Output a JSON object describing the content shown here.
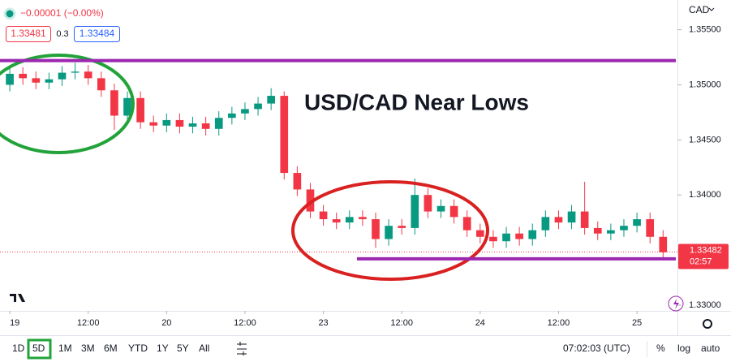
{
  "chart_data": {
    "type": "candlestick",
    "title": "USD/CAD Near Lows",
    "change": "−0.00001 (−0.00%)",
    "bid": 1.33481,
    "spread": 0.3,
    "ask": 1.33484,
    "currency": "CAD",
    "open": [
      1.35,
      1.351,
      1.3506,
      1.3502,
      1.3505,
      1.3511,
      1.3512,
      1.3506,
      1.3495,
      1.3472,
      1.3488,
      1.3466,
      1.3463,
      1.3468,
      1.3462,
      1.3465,
      1.346,
      1.347,
      1.3474,
      1.3478,
      1.3483,
      1.349,
      1.342,
      1.3405,
      1.3385,
      1.3378,
      1.3375,
      1.338,
      1.3378,
      1.336,
      1.3372,
      1.337,
      1.34,
      1.3385,
      1.339,
      1.338,
      1.3368,
      1.3362,
      1.3358,
      1.3365,
      1.336,
      1.3368,
      1.338,
      1.3375,
      1.3385,
      1.337,
      1.3365,
      1.3368,
      1.3372,
      1.3378,
      1.3362
    ],
    "high": [
      1.3516,
      1.3516,
      1.3512,
      1.3511,
      1.3517,
      1.352,
      1.3518,
      1.3512,
      1.3501,
      1.3494,
      1.3494,
      1.3472,
      1.3474,
      1.3474,
      1.3471,
      1.3471,
      1.3476,
      1.348,
      1.3484,
      1.3489,
      1.3497,
      1.3494,
      1.3426,
      1.3411,
      1.3391,
      1.3384,
      1.3386,
      1.3386,
      1.3384,
      1.3378,
      1.3378,
      1.3415,
      1.3406,
      1.3396,
      1.3396,
      1.3386,
      1.3374,
      1.3368,
      1.3371,
      1.3371,
      1.3374,
      1.3386,
      1.3386,
      1.3391,
      1.3412,
      1.3376,
      1.3374,
      1.3378,
      1.3384,
      1.3384,
      1.3368
    ],
    "low": [
      1.3494,
      1.35,
      1.3496,
      1.3496,
      1.3499,
      1.3505,
      1.35,
      1.3489,
      1.3459,
      1.3466,
      1.346,
      1.3457,
      1.3457,
      1.3456,
      1.3456,
      1.3454,
      1.3454,
      1.3464,
      1.3468,
      1.3472,
      1.3477,
      1.3414,
      1.3399,
      1.3379,
      1.3372,
      1.3369,
      1.3369,
      1.3372,
      1.3352,
      1.3354,
      1.3364,
      1.3364,
      1.3379,
      1.3379,
      1.3374,
      1.3362,
      1.3356,
      1.3352,
      1.3352,
      1.3354,
      1.3354,
      1.3362,
      1.3369,
      1.3369,
      1.3364,
      1.3359,
      1.3359,
      1.3362,
      1.3366,
      1.3356,
      1.3342
    ],
    "close": [
      1.351,
      1.3506,
      1.3502,
      1.3505,
      1.3511,
      1.3512,
      1.3506,
      1.3495,
      1.3472,
      1.3488,
      1.3466,
      1.3463,
      1.3468,
      1.3462,
      1.3465,
      1.346,
      1.347,
      1.3474,
      1.3478,
      1.3483,
      1.349,
      1.342,
      1.3405,
      1.3385,
      1.3378,
      1.3375,
      1.338,
      1.3378,
      1.336,
      1.3372,
      1.337,
      1.34,
      1.3385,
      1.339,
      1.338,
      1.3368,
      1.3362,
      1.3358,
      1.3365,
      1.336,
      1.3368,
      1.338,
      1.3375,
      1.3385,
      1.337,
      1.3365,
      1.3368,
      1.3372,
      1.3378,
      1.3362,
      1.3348
    ],
    "up_color": "#089981",
    "down_color": "#f23645",
    "xlim": [
      -0.75,
      51.1
    ],
    "xticks": [
      {
        "value": 0,
        "label": "19"
      },
      {
        "value": 6,
        "label": "12:00"
      },
      {
        "value": 12,
        "label": "20"
      },
      {
        "value": 18,
        "label": "12:00"
      },
      {
        "value": 24,
        "label": "23"
      },
      {
        "value": 30,
        "label": "12:00"
      },
      {
        "value": 36,
        "label": "24"
      },
      {
        "value": 42,
        "label": "12:00"
      },
      {
        "value": 48,
        "label": "25"
      }
    ],
    "ylim": [
      1.3297,
      1.3577
    ],
    "yticks": [
      {
        "value": 1.355,
        "label": "1.35500"
      },
      {
        "value": 1.35,
        "label": "1.35000"
      },
      {
        "value": 1.345,
        "label": "1.34500"
      },
      {
        "value": 1.34,
        "label": "1.34000"
      },
      {
        "value": 1.335,
        "label": "1.33500"
      },
      {
        "value": 1.33,
        "label": "1.33000"
      }
    ],
    "levels": [
      1.3522,
      1.3342
    ],
    "level_color": "#9c27b0",
    "last_price": 1.33482,
    "countdown": "02:57",
    "timeframes": [
      "1D",
      "5D",
      "1M",
      "3M",
      "6M",
      "YTD",
      "1Y",
      "5Y",
      "All"
    ],
    "clock": "07:02:03 (UTC)",
    "options": [
      "%",
      "log",
      "auto"
    ]
  }
}
